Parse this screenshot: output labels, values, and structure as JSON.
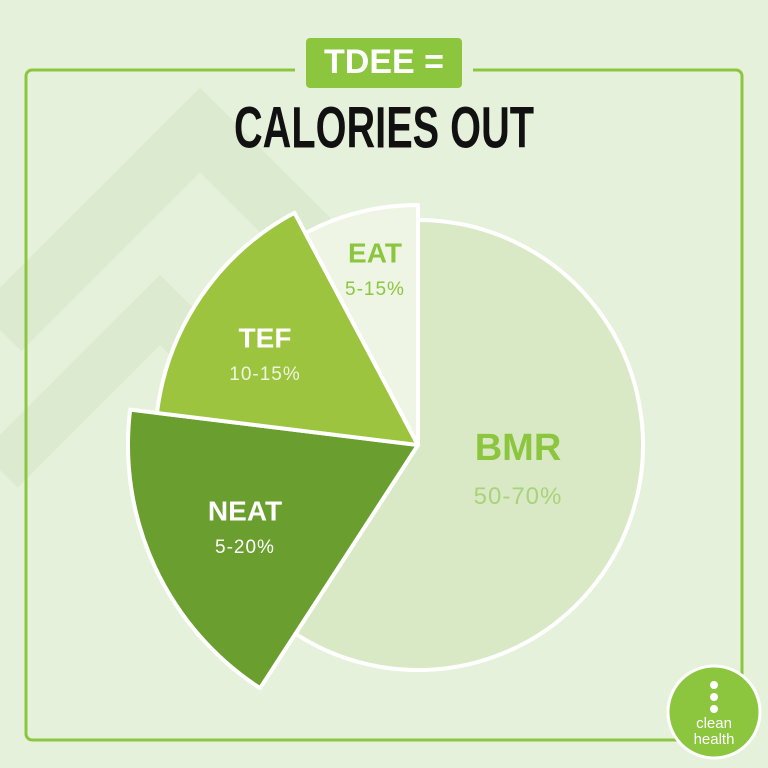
{
  "header": {
    "badge": "TDEE =",
    "title": "CALORIES OUT"
  },
  "segments": [
    {
      "name": "BMR",
      "range": "50-70%"
    },
    {
      "name": "NEAT",
      "range": "5-20%"
    },
    {
      "name": "TEF",
      "range": "10-15%"
    },
    {
      "name": "EAT",
      "range": "5-15%"
    }
  ],
  "logo": {
    "line1": "clean",
    "line2": "health"
  }
}
